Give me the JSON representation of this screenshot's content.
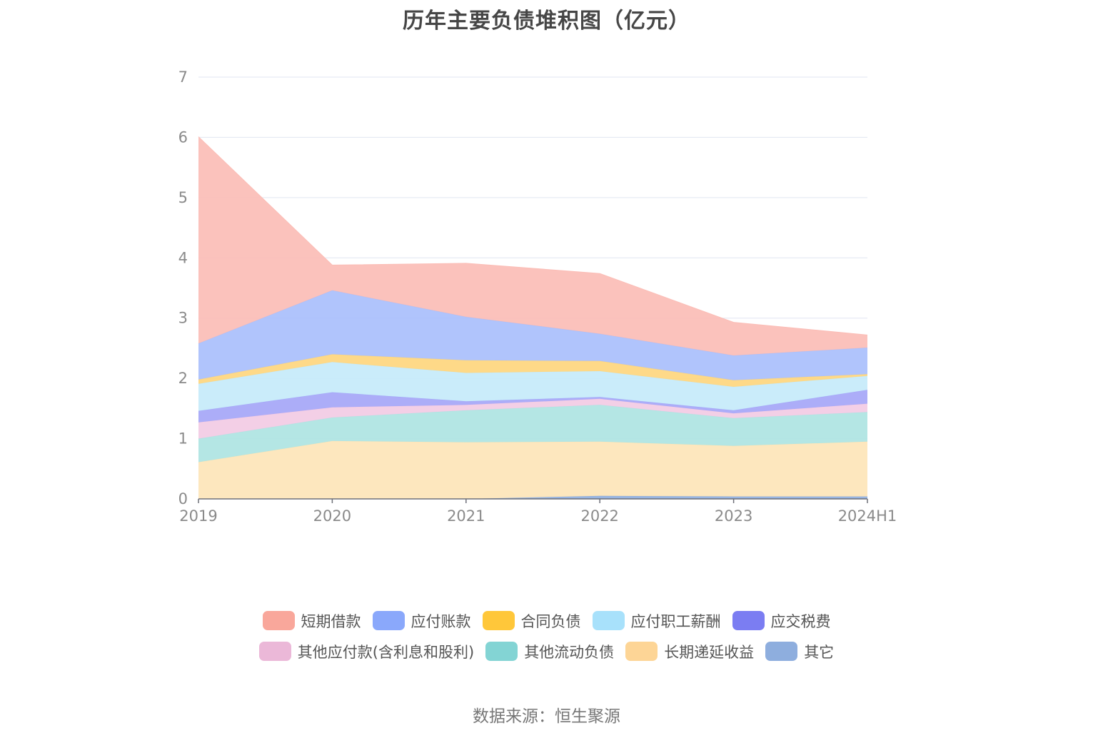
{
  "chart_data": {
    "type": "area",
    "stacked": true,
    "title": "历年主要负债堆积图（亿元）",
    "categories": [
      "2019",
      "2020",
      "2021",
      "2022",
      "2023",
      "2024H1"
    ],
    "ylim": [
      0,
      7
    ],
    "yticks": [
      0,
      1,
      2,
      3,
      4,
      5,
      6,
      7
    ],
    "grid": true,
    "legend_position": "bottom",
    "series": [
      {
        "name": "其它",
        "color": "#8eaede",
        "fill": "#8eaede",
        "values": [
          0.0,
          0.0,
          0.0,
          0.05,
          0.04,
          0.04
        ]
      },
      {
        "name": "长期递延收益",
        "color": "#fdd596",
        "fill": "#fde5b8",
        "values": [
          0.61,
          0.96,
          0.94,
          0.9,
          0.84,
          0.91
        ]
      },
      {
        "name": "其他流动负债",
        "color": "#83d4d4",
        "fill": "#aee4e2",
        "values": [
          0.39,
          0.39,
          0.53,
          0.61,
          0.46,
          0.49
        ]
      },
      {
        "name": "其他应付款(含利息和股利)",
        "color": "#ebb8d8",
        "fill": "#f2cbe4",
        "values": [
          0.27,
          0.17,
          0.09,
          0.1,
          0.08,
          0.14
        ]
      },
      {
        "name": "应交税费",
        "color": "#7b7df2",
        "fill": "#a5a6f7",
        "values": [
          0.19,
          0.25,
          0.06,
          0.03,
          0.05,
          0.23
        ]
      },
      {
        "name": "应付职工薪酬",
        "color": "#a8e1fb",
        "fill": "#c6eafa",
        "values": [
          0.45,
          0.5,
          0.47,
          0.43,
          0.39,
          0.23
        ]
      },
      {
        "name": "合同负债",
        "color": "#ffc73a",
        "fill": "#fed67e",
        "values": [
          0.07,
          0.13,
          0.21,
          0.17,
          0.11,
          0.03
        ]
      },
      {
        "name": "应付账款",
        "color": "#8aa8fb",
        "fill": "#a9bffc",
        "values": [
          0.6,
          1.06,
          0.72,
          0.45,
          0.41,
          0.44
        ]
      },
      {
        "name": "短期借款",
        "color": "#f9a79b",
        "fill": "#fbbdb6",
        "values": [
          3.43,
          0.42,
          0.89,
          1.0,
          0.55,
          0.21
        ]
      }
    ]
  },
  "legend": {
    "rows": [
      [
        {
          "label": "短期借款",
          "color": "#f9a79b"
        },
        {
          "label": "应付账款",
          "color": "#8aa8fb"
        },
        {
          "label": "合同负债",
          "color": "#ffc73a"
        },
        {
          "label": "应付职工薪酬",
          "color": "#a8e1fb"
        },
        {
          "label": "应交税费",
          "color": "#7b7df2"
        }
      ],
      [
        {
          "label": "其他应付款(含利息和股利)",
          "color": "#ebb8d8"
        },
        {
          "label": "其他流动负债",
          "color": "#83d4d4"
        },
        {
          "label": "长期递延收益",
          "color": "#fdd596"
        },
        {
          "label": "其它",
          "color": "#8eaede"
        }
      ]
    ]
  },
  "source_note": "数据来源：恒生聚源"
}
